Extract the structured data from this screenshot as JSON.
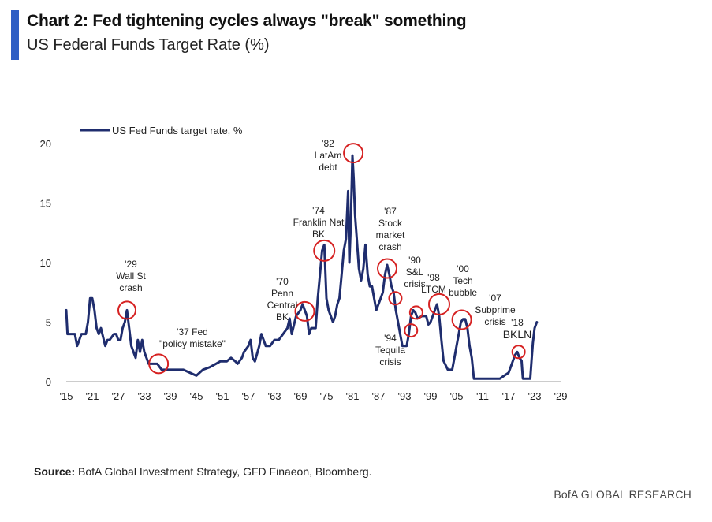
{
  "header": {
    "title": "Chart 2: Fed tightening cycles always \"break\" something",
    "subtitle": "US Federal Funds Target Rate (%)"
  },
  "footer": {
    "source_label": "Source:",
    "source_text": "BofA Global Investment Strategy, GFD Finaeon, Bloomberg.",
    "brand": "BofA GLOBAL RESEARCH"
  },
  "colors": {
    "accent": "#2f5fc4",
    "series": "#1f2d6e",
    "circle": "#d62222"
  },
  "chart_data": {
    "type": "line",
    "ylim": [
      0,
      20
    ],
    "yticks": [
      0,
      5,
      10,
      15,
      20
    ],
    "xlim": [
      1915,
      2029
    ],
    "xticks": [
      {
        "year": 1915,
        "label": "'15"
      },
      {
        "year": 1921,
        "label": "'21"
      },
      {
        "year": 1927,
        "label": "'27"
      },
      {
        "year": 1933,
        "label": "'33"
      },
      {
        "year": 1939,
        "label": "'39"
      },
      {
        "year": 1945,
        "label": "'45"
      },
      {
        "year": 1951,
        "label": "'51"
      },
      {
        "year": 1957,
        "label": "'57"
      },
      {
        "year": 1963,
        "label": "'63"
      },
      {
        "year": 1969,
        "label": "'69"
      },
      {
        "year": 1975,
        "label": "'75"
      },
      {
        "year": 1981,
        "label": "'81"
      },
      {
        "year": 1987,
        "label": "'87"
      },
      {
        "year": 1993,
        "label": "'93"
      },
      {
        "year": 1999,
        "label": "'99"
      },
      {
        "year": 2005,
        "label": "'05"
      },
      {
        "year": 2011,
        "label": "'11"
      },
      {
        "year": 2017,
        "label": "'17"
      },
      {
        "year": 2023,
        "label": "'23"
      },
      {
        "year": 2029,
        "label": "'29"
      }
    ],
    "legend": "top-left",
    "series": [
      {
        "name": "US Fed Funds target rate, %",
        "x": [
          1915.0,
          1915.3,
          1916.0,
          1917.0,
          1917.5,
          1918.5,
          1919.5,
          1920.0,
          1920.5,
          1921.0,
          1921.5,
          1922.0,
          1922.5,
          1923.0,
          1924.0,
          1924.5,
          1925.0,
          1926.0,
          1926.5,
          1927.0,
          1927.5,
          1928.0,
          1928.5,
          1929.0,
          1929.5,
          1930.0,
          1930.5,
          1931.0,
          1931.5,
          1932.0,
          1932.5,
          1933.0,
          1933.5,
          1934.0,
          1934.5,
          1935.0,
          1936.0,
          1937.0,
          1938.0,
          1940.0,
          1942.0,
          1945.0,
          1946.5,
          1948.0,
          1949.5,
          1950.5,
          1952.0,
          1953.0,
          1954.0,
          1954.5,
          1955.5,
          1956.0,
          1957.0,
          1957.5,
          1958.0,
          1958.5,
          1959.5,
          1960.0,
          1960.5,
          1961.0,
          1962.0,
          1963.0,
          1964.0,
          1965.0,
          1966.0,
          1966.5,
          1967.0,
          1968.0,
          1969.0,
          1969.5,
          1970.0,
          1970.5,
          1971.0,
          1971.5,
          1972.0,
          1972.5,
          1973.0,
          1973.5,
          1974.0,
          1974.5,
          1975.0,
          1975.5,
          1976.0,
          1976.5,
          1977.0,
          1977.5,
          1978.0,
          1978.5,
          1979.0,
          1979.5,
          1980.0,
          1980.3,
          1980.6,
          1981.0,
          1981.3,
          1981.6,
          1982.0,
          1982.5,
          1983.0,
          1983.5,
          1984.0,
          1984.5,
          1985.0,
          1985.5,
          1986.0,
          1986.5,
          1987.0,
          1987.5,
          1988.0,
          1988.5,
          1989.0,
          1989.5,
          1990.0,
          1990.5,
          1991.0,
          1991.5,
          1992.0,
          1992.5,
          1993.0,
          1993.5,
          1994.0,
          1994.5,
          1995.0,
          1995.5,
          1996.0,
          1997.0,
          1998.0,
          1998.5,
          1999.0,
          1999.5,
          2000.0,
          2000.5,
          2001.0,
          2001.5,
          2002.0,
          2003.0,
          2003.5,
          2004.0,
          2004.5,
          2005.0,
          2005.5,
          2006.0,
          2006.5,
          2007.0,
          2007.5,
          2008.0,
          2008.5,
          2009.0,
          2012.0,
          2015.0,
          2016.0,
          2017.0,
          2017.5,
          2018.0,
          2018.5,
          2019.0,
          2019.5,
          2020.0,
          2020.3,
          2021.0,
          2022.0,
          2022.3,
          2022.6,
          2023.0,
          2023.5
        ],
        "values": [
          6.0,
          4.0,
          4.0,
          4.0,
          3.0,
          4.0,
          4.0,
          5.0,
          7.0,
          7.0,
          6.0,
          4.5,
          4.0,
          4.5,
          3.0,
          3.5,
          3.5,
          4.0,
          4.0,
          3.5,
          3.5,
          4.5,
          5.0,
          6.0,
          4.5,
          3.0,
          2.5,
          2.0,
          3.5,
          2.5,
          3.5,
          2.5,
          2.0,
          1.5,
          1.5,
          1.5,
          1.5,
          1.0,
          1.0,
          1.0,
          1.0,
          0.5,
          1.0,
          1.2,
          1.5,
          1.7,
          1.7,
          2.0,
          1.7,
          1.5,
          2.0,
          2.5,
          3.0,
          3.5,
          2.0,
          1.7,
          3.0,
          4.0,
          3.5,
          3.0,
          3.0,
          3.5,
          3.5,
          4.0,
          4.5,
          5.3,
          4.0,
          5.5,
          6.0,
          6.5,
          6.0,
          5.5,
          4.0,
          4.5,
          4.5,
          4.5,
          7.0,
          9.0,
          11.0,
          11.5,
          7.0,
          6.0,
          5.5,
          5.0,
          5.5,
          6.5,
          7.0,
          9.0,
          11.0,
          12.0,
          16.0,
          10.0,
          13.0,
          19.0,
          17.0,
          14.0,
          12.0,
          9.5,
          8.5,
          9.5,
          11.5,
          9.0,
          8.0,
          8.0,
          7.0,
          6.0,
          6.5,
          7.0,
          7.5,
          9.0,
          9.8,
          9.0,
          8.0,
          7.5,
          6.0,
          5.0,
          4.0,
          3.0,
          3.0,
          3.0,
          4.0,
          5.5,
          6.0,
          5.8,
          5.3,
          5.5,
          5.5,
          4.8,
          5.0,
          5.5,
          6.0,
          6.5,
          5.5,
          3.5,
          1.75,
          1.0,
          1.0,
          1.0,
          2.0,
          3.0,
          4.0,
          5.0,
          5.25,
          5.25,
          4.5,
          3.0,
          2.0,
          0.25,
          0.25,
          0.25,
          0.5,
          0.75,
          1.25,
          1.75,
          2.25,
          2.5,
          2.0,
          1.75,
          0.25,
          0.25,
          0.25,
          1.75,
          3.25,
          4.5,
          5.0
        ]
      }
    ],
    "annotations": [
      {
        "lines": [
          "'29",
          "Wall St",
          "crash"
        ],
        "year": 1929.0,
        "value": 6.0
      },
      {
        "lines": [
          "'37 Fed",
          "\"policy mistake\""
        ],
        "year": 1936.3,
        "value": 1.5
      },
      {
        "lines": [
          "'70",
          "Penn",
          "Central",
          "BK"
        ],
        "year": 1970.0,
        "value": 5.9
      },
      {
        "lines": [
          "'74",
          "Franklin Nat",
          "BK"
        ],
        "year": 1974.5,
        "value": 11.0
      },
      {
        "lines": [
          "'82",
          "LatAm",
          "debt"
        ],
        "year": 1981.2,
        "value": 19.2
      },
      {
        "lines": [
          "'87",
          "Stock",
          "market",
          "crash"
        ],
        "year": 1989.0,
        "value": 9.5
      },
      {
        "lines": [
          "'90",
          "S&L",
          "crisis"
        ],
        "year": 1990.9,
        "value": 7.0
      },
      {
        "lines": [
          "'94",
          "Tequila",
          "crisis"
        ],
        "year": 1994.5,
        "value": 4.3
      },
      {
        "lines": [
          "'98",
          "LTCM"
        ],
        "year": 1995.7,
        "value": 5.8
      },
      {
        "lines": [
          "'00",
          "Tech",
          "bubble"
        ],
        "year": 2001.0,
        "value": 6.5
      },
      {
        "lines": [
          "'07",
          "Subprime",
          "crisis"
        ],
        "year": 2006.2,
        "value": 5.2
      },
      {
        "lines": [
          "'18",
          "BKLN"
        ],
        "year": 2019.3,
        "value": 2.5
      }
    ]
  }
}
